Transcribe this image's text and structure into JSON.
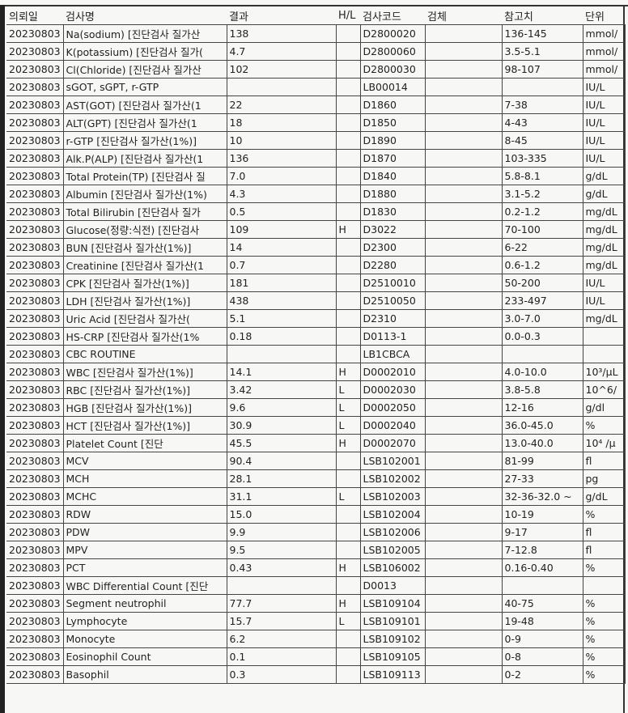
{
  "headers": [
    "의뢰일",
    "검사명",
    "결과",
    "H/L",
    "검사코드",
    "검체",
    "참고치",
    "단위"
  ],
  "rows": [
    [
      "20230803",
      "Na(sodium)  [진단검사 질가산",
      "138",
      "",
      "D2800020",
      "",
      "136-145",
      "mmol/"
    ],
    [
      "20230803",
      "K(potassium)  [진단검사 질가(",
      "4.7",
      "",
      "D2800060",
      "",
      "3.5-5.1",
      "mmol/"
    ],
    [
      "20230803",
      "Cl(Chloride)  [진단검사 질가산",
      "102",
      "",
      "D2800030",
      "",
      "98-107",
      "mmol/"
    ],
    [
      "20230803",
      "sGOT, sGPT, r-GTP",
      "",
      "",
      "LB00014",
      "",
      "",
      "IU/L"
    ],
    [
      "20230803",
      "AST(GOT)  [진단검사 질가산(1",
      "22",
      "",
      "D1860",
      "",
      "7-38",
      "IU/L"
    ],
    [
      "20230803",
      "ALT(GPT)   [진단검사 질가산(1",
      "18",
      "",
      "D1850",
      "",
      "4-43",
      "IU/L"
    ],
    [
      "20230803",
      "r-GTP  [진단검사 질가산(1%)]",
      "10",
      "",
      "D1890",
      "",
      "8-45",
      "IU/L"
    ],
    [
      "20230803",
      "Alk.P(ALP) [진단검사 질가산(1",
      "136",
      "",
      "D1870",
      "",
      "103-335",
      "IU/L"
    ],
    [
      "20230803",
      "Total Protein(TP)  [진단검사 질",
      "7.0",
      "",
      "D1840",
      "",
      "5.8-8.1",
      "g/dL"
    ],
    [
      "20230803",
      "Albumin [진단검사 질가산(1%)",
      "4.3",
      "",
      "D1880",
      "",
      "3.1-5.2",
      "g/dL"
    ],
    [
      "20230803",
      "Total Bilirubin  [진단검사 질가",
      "0.5",
      "",
      "D1830",
      "",
      "0.2-1.2",
      "mg/dL"
    ],
    [
      "20230803",
      "Glucose(정량:식전)  [진단검사",
      "109",
      "H",
      "D3022",
      "",
      "70-100",
      "mg/dL"
    ],
    [
      "20230803",
      "BUN  [진단검사 질가산(1%)]",
      "14",
      "",
      "D2300",
      "",
      "6-22",
      "mg/dL"
    ],
    [
      "20230803",
      "Creatinine  [진단검사 질가산(1",
      "0.7",
      "",
      "D2280",
      "",
      "0.6-1.2",
      "mg/dL"
    ],
    [
      "20230803",
      "CPK  [진단검사 질가산(1%)]",
      "181",
      "",
      "D2510010",
      "",
      "50-200",
      "IU/L"
    ],
    [
      "20230803",
      "LDH  [진단검사 질가산(1%)]",
      "438",
      "",
      "D2510050",
      "",
      "233-497",
      "IU/L"
    ],
    [
      "20230803",
      "Uric Acid   [진단검사 질가산(",
      "5.1",
      "",
      "D2310",
      "",
      "3.0-7.0",
      "mg/dL"
    ],
    [
      "20230803",
      "HS-CRP  [진단검사 질가산(1%",
      "0.18",
      "",
      "D0113-1",
      "",
      "0.0-0.3",
      ""
    ],
    [
      "20230803",
      "CBC ROUTINE",
      "",
      "",
      "LB1CBCA",
      "",
      "",
      ""
    ],
    [
      "20230803",
      "WBC    [진단검사 질가산(1%)]",
      "14.1",
      "H",
      "D0002010",
      "",
      "4.0-10.0",
      "10³/μL"
    ],
    [
      "20230803",
      "RBC    [진단검사 질가산(1%)]",
      "3.42",
      "L",
      "D0002030",
      "",
      "3.8-5.8",
      "10^6/"
    ],
    [
      "20230803",
      "HGB [진단검사 질가산(1%)]",
      "9.6",
      "L",
      "D0002050",
      "",
      "12-16",
      "g/dl"
    ],
    [
      "20230803",
      "HCT   [진단검사 질가산(1%)]",
      "30.9",
      "L",
      "D0002040",
      "",
      "36.0-45.0",
      "%"
    ],
    [
      "20230803",
      "Platelet Count          [진단",
      "45.5",
      "H",
      "D0002070",
      "",
      "13.0-40.0",
      "10⁴ /μ"
    ],
    [
      "20230803",
      "MCV",
      "90.4",
      "",
      "LSB102001",
      "",
      "81-99",
      "fl"
    ],
    [
      "20230803",
      "MCH",
      "28.1",
      "",
      "LSB102002",
      "",
      "27-33",
      "pg"
    ],
    [
      "20230803",
      "MCHC",
      "31.1",
      "L",
      "LSB102003",
      "",
      "32-36-32.0 ~",
      "g/dL"
    ],
    [
      "20230803",
      "RDW",
      "15.0",
      "",
      "LSB102004",
      "",
      "10-19",
      "%"
    ],
    [
      "20230803",
      "PDW",
      "9.9",
      "",
      "LSB102006",
      "",
      "9-17",
      "fl"
    ],
    [
      "20230803",
      "MPV",
      "9.5",
      "",
      "LSB102005",
      "",
      "7-12.8",
      "fl"
    ],
    [
      "20230803",
      "PCT",
      "0.43",
      "H",
      "LSB106002",
      "",
      "0.16-0.40",
      "%"
    ],
    [
      "20230803",
      "WBC Differential Count   [진단",
      "",
      "",
      "D0013",
      "",
      "",
      ""
    ],
    [
      "20230803",
      "Segment neutrophil",
      "77.7",
      "H",
      "LSB109104",
      "",
      "40-75",
      "%"
    ],
    [
      "20230803",
      "Lymphocyte",
      "15.7",
      "L",
      "LSB109101",
      "",
      "19-48",
      "%"
    ],
    [
      "20230803",
      "Monocyte",
      "6.2",
      "",
      "LSB109102",
      "",
      "0-9",
      "%"
    ],
    [
      "20230803",
      "Eosinophil Count",
      "0.1",
      "",
      "LSB109105",
      "",
      "0-8",
      "%"
    ],
    [
      "20230803",
      "Basophil",
      "0.3",
      "",
      "LSB109113",
      "",
      "0-2",
      "%"
    ]
  ]
}
